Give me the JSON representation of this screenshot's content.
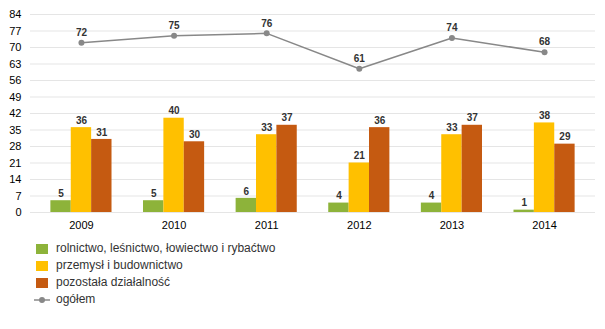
{
  "chart_data": {
    "type": "bar",
    "categories": [
      "2009",
      "2010",
      "2011",
      "2012",
      "2013",
      "2014"
    ],
    "series": [
      {
        "name": "rolnictwo, leśnictwo, łowiectwo i rybaćtwo",
        "color": "#8db33a",
        "values": [
          5,
          5,
          6,
          4,
          4,
          1
        ]
      },
      {
        "name": "przemysł i budownictwo",
        "color": "#ffc000",
        "values": [
          36,
          40,
          33,
          21,
          33,
          38
        ]
      },
      {
        "name": "pozostała działalność",
        "color": "#c55a11",
        "values": [
          31,
          30,
          37,
          36,
          37,
          29
        ]
      },
      {
        "name": "ogółem",
        "type": "line",
        "marker": "circle",
        "color": "#888888",
        "values": [
          72,
          75,
          76,
          61,
          74,
          68
        ]
      }
    ],
    "ylim": [
      0,
      84
    ],
    "yticks": [
      0,
      7,
      14,
      21,
      28,
      35,
      42,
      49,
      56,
      63,
      70,
      77,
      84
    ],
    "grid": true,
    "data_labels": true,
    "legend": "bottom"
  }
}
